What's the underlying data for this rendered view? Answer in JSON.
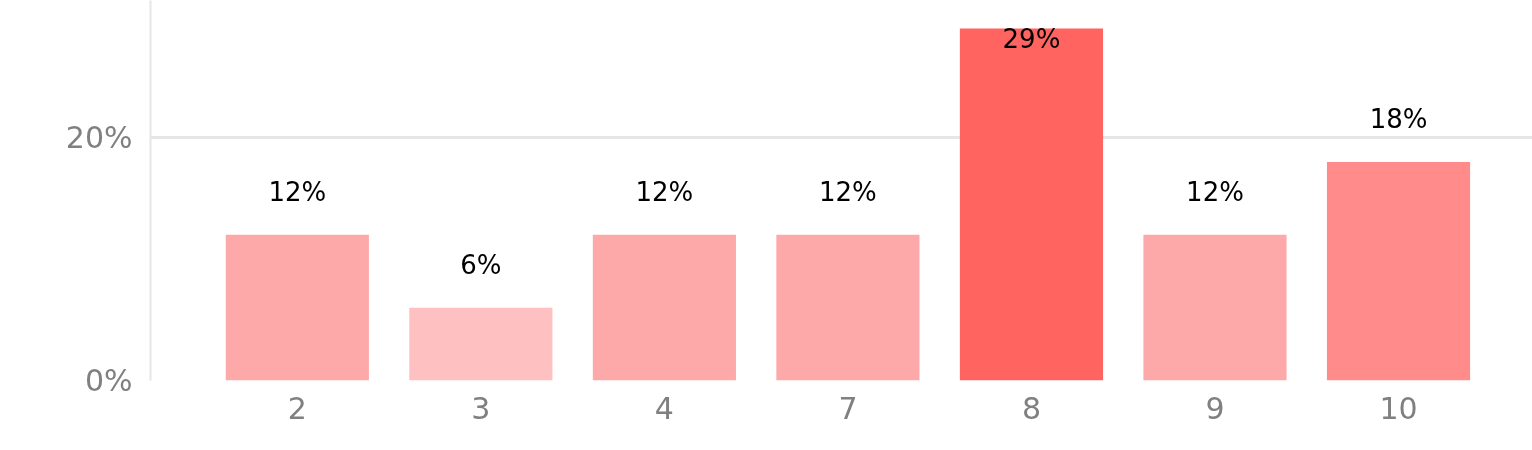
{
  "chart_data": {
    "type": "bar",
    "categories": [
      "2",
      "3",
      "4",
      "7",
      "8",
      "9",
      "10"
    ],
    "values": [
      12,
      6,
      12,
      12,
      29,
      12,
      18
    ],
    "colors": [
      "#fda9a9",
      "#fec0c0",
      "#fda9a9",
      "#fda9a9",
      "#ff6461",
      "#fda9a9",
      "#ff8c8a"
    ],
    "value_labels": [
      "12%",
      "6%",
      "12%",
      "12%",
      "29%",
      "12%",
      "18%"
    ],
    "ylim": [
      0,
      31.3
    ],
    "yticks": [
      {
        "value": 0,
        "label": "0%"
      },
      {
        "value": 20,
        "label": "20%"
      }
    ],
    "grid": "y"
  }
}
